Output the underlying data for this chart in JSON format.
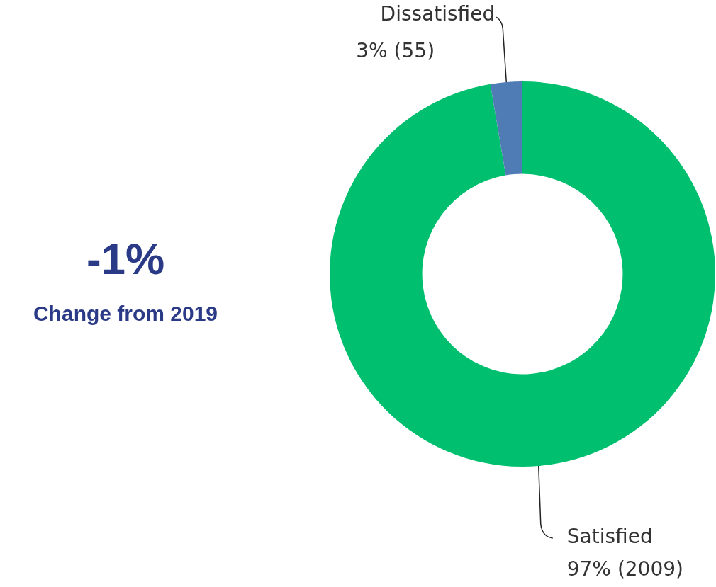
{
  "chart_data": {
    "type": "donut",
    "categories": [
      "Satisfied",
      "Dissatisfied"
    ],
    "values": [
      2009,
      55
    ],
    "value_labels": [
      "97% (2009)",
      "3% (55)"
    ],
    "colors": [
      "#00bf6f",
      "#507cb6"
    ],
    "legend": false,
    "annotations": [
      "-1%",
      "Change from 2019"
    ]
  }
}
